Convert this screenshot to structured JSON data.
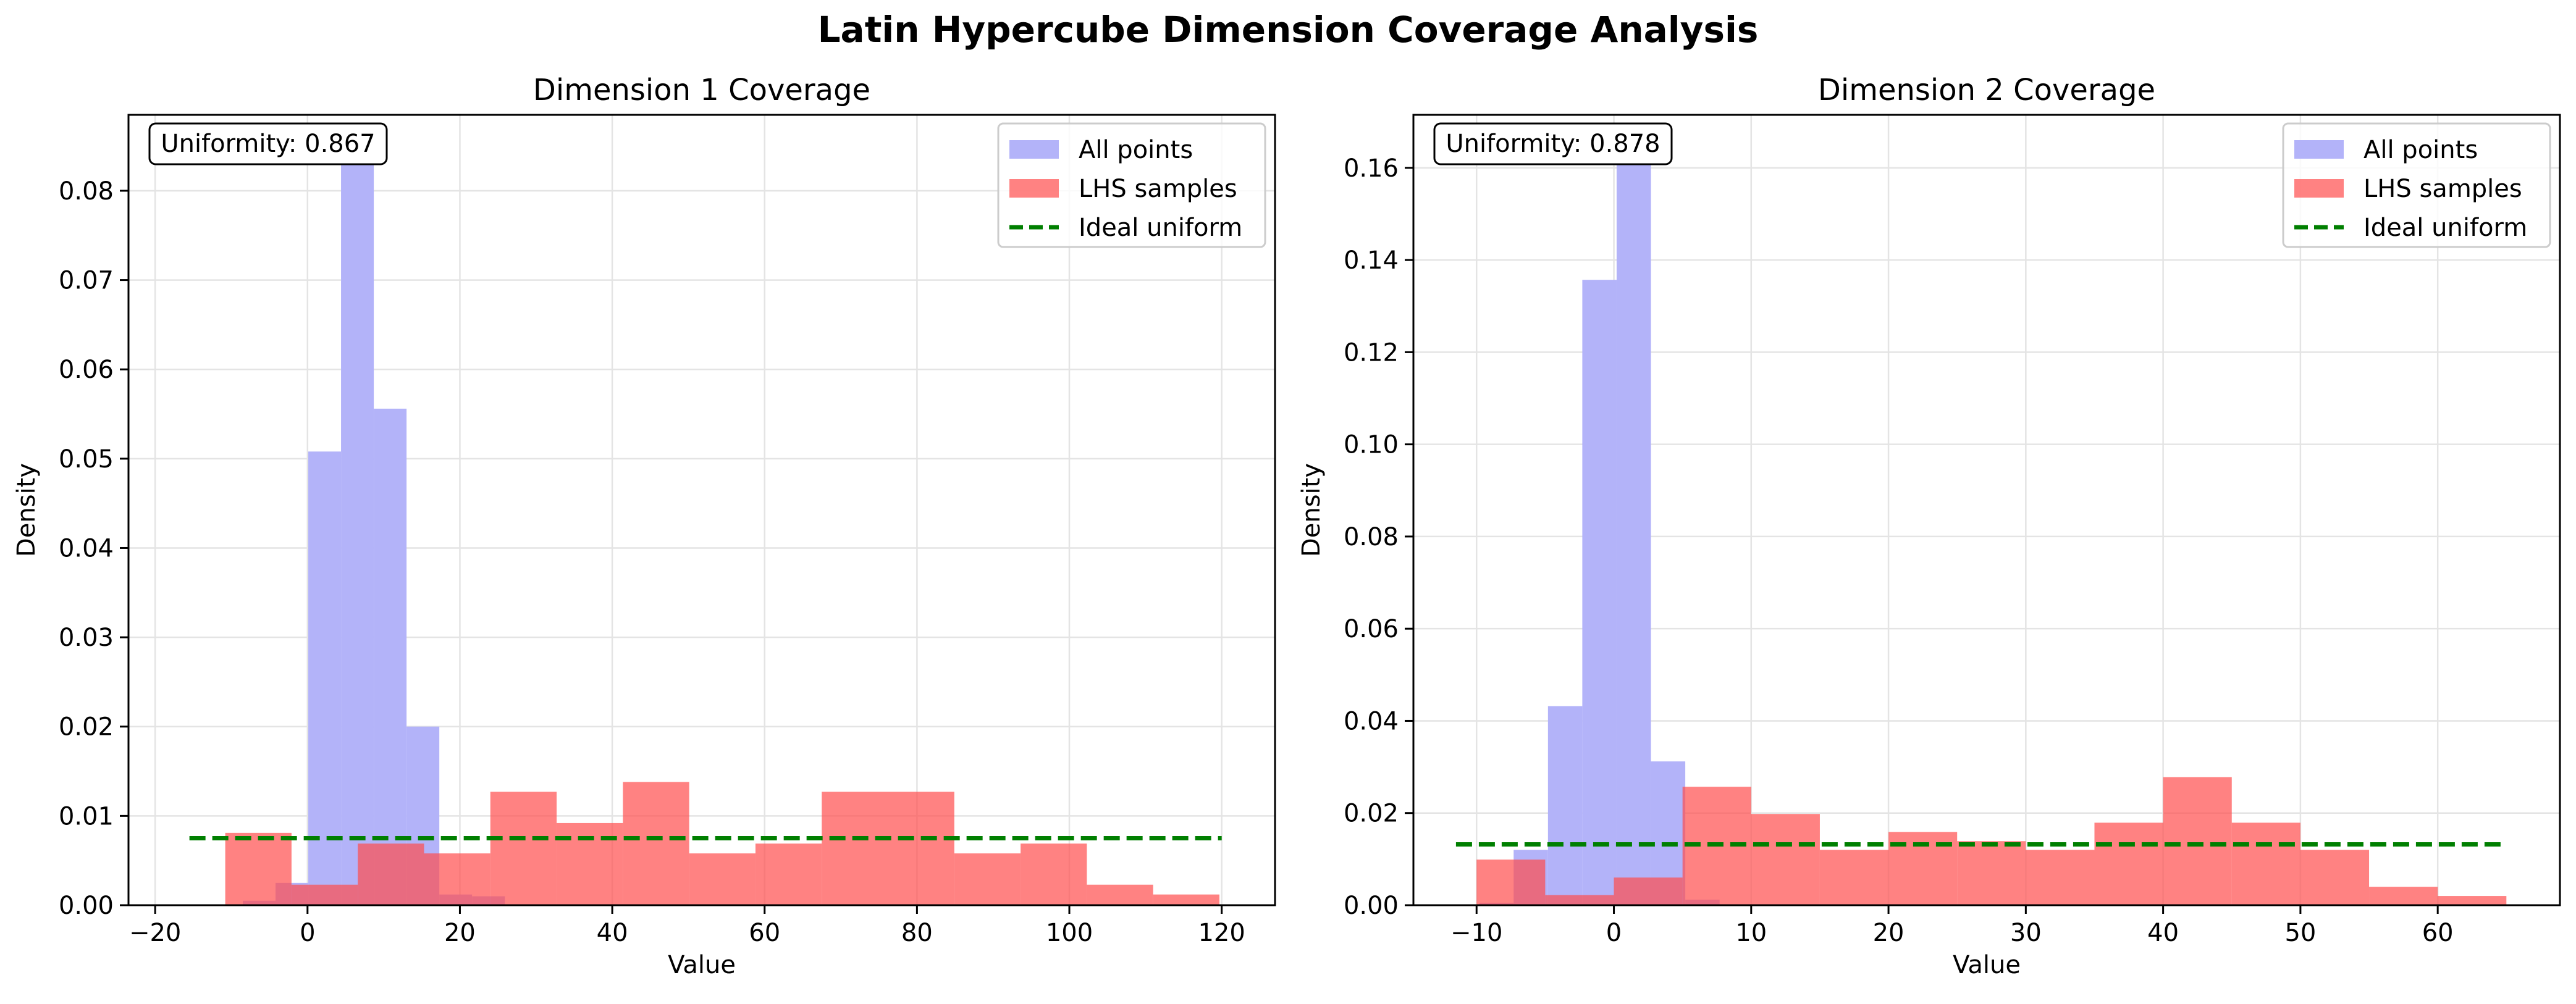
{
  "figure": {
    "title": "Latin Hypercube Dimension Coverage Analysis"
  },
  "colors": {
    "all_points": "#b3b3f9",
    "lhs_samples": "#ff4d4d",
    "overlap": "#e43c4f",
    "ideal": "#007f00",
    "grid": "#e4e4e4"
  },
  "chart_data": [
    {
      "type": "bar",
      "title": "Dimension 1 Coverage",
      "xlabel": "Value",
      "ylabel": "Density",
      "xlim": [
        -23.5,
        127
      ],
      "ylim": [
        0,
        0.0885
      ],
      "xticks": [
        -20,
        0,
        20,
        40,
        60,
        80,
        100,
        120
      ],
      "yticks": [
        0.0,
        0.01,
        0.02,
        0.03,
        0.04,
        0.05,
        0.06,
        0.07,
        0.08
      ],
      "ytick_decimals": 2,
      "grid": true,
      "legend_position": "top-right",
      "annotation": "Uniformity: 0.867",
      "series": [
        {
          "name": "All points",
          "bin_edges": [
            -8.5,
            -4.2,
            0.1,
            4.4,
            8.7,
            13,
            17.3,
            21.6,
            25.9
          ],
          "values": [
            0.0005,
            0.0025,
            0.0508,
            0.084,
            0.0556,
            0.02,
            0.0012,
            0.001
          ]
        },
        {
          "name": "LHS samples",
          "bin_edges": [
            -10.8,
            -2.1,
            6.6,
            15.3,
            24,
            32.7,
            41.4,
            50.1,
            58.8,
            67.5,
            76.2,
            84.9,
            93.6,
            102.3,
            111,
            119.7
          ],
          "values": [
            0.0081,
            0.0023,
            0.0069,
            0.0058,
            0.0127,
            0.0092,
            0.0138,
            0.0058,
            0.0069,
            0.0127,
            0.0127,
            0.0058,
            0.0069,
            0.0023,
            0.0012
          ]
        },
        {
          "name": "Ideal uniform",
          "x": [
            -15.5,
            120
          ],
          "y": [
            0.0075,
            0.0075
          ]
        }
      ]
    },
    {
      "type": "bar",
      "title": "Dimension 2 Coverage",
      "xlabel": "Value",
      "ylabel": "Density",
      "xlim": [
        -14.6,
        68.9
      ],
      "ylim": [
        0,
        0.1715
      ],
      "xticks": [
        -10,
        0,
        10,
        20,
        30,
        40,
        50,
        60
      ],
      "yticks": [
        0.0,
        0.02,
        0.04,
        0.06,
        0.08,
        0.1,
        0.12,
        0.14,
        0.16
      ],
      "ytick_decimals": 2,
      "grid": true,
      "legend_position": "top-right",
      "annotation": "Uniformity: 0.878",
      "series": [
        {
          "name": "All points",
          "bin_edges": [
            -9.8,
            -7.3,
            -4.8,
            -2.3,
            0.2,
            2.7,
            5.2,
            7.7
          ],
          "values": [
            0.0005,
            0.012,
            0.0432,
            0.1357,
            0.1635,
            0.0312,
            0.0012
          ]
        },
        {
          "name": "LHS samples",
          "bin_edges": [
            -10,
            -5,
            0,
            5,
            10,
            15,
            20,
            25,
            30,
            35,
            40,
            45,
            50,
            55,
            60,
            65
          ],
          "values": [
            0.0099,
            0.0022,
            0.006,
            0.0257,
            0.0198,
            0.012,
            0.0159,
            0.0139,
            0.012,
            0.0179,
            0.0278,
            0.0179,
            0.012,
            0.004,
            0.002
          ]
        },
        {
          "name": "Ideal uniform",
          "x": [
            -11.5,
            65
          ],
          "y": [
            0.0132,
            0.0132
          ]
        }
      ]
    }
  ]
}
